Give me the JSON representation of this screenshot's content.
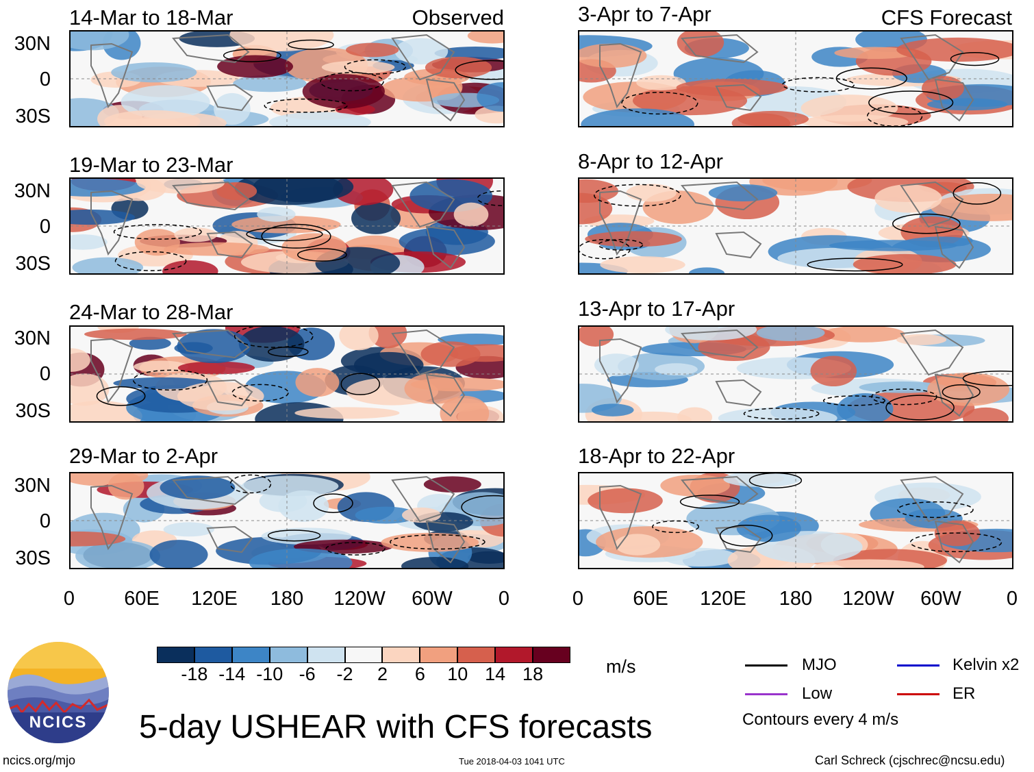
{
  "left_column_tag": "Observed",
  "right_column_tag": "CFS Forecast",
  "observed_panels": [
    {
      "title": "14-Mar to 18-Mar"
    },
    {
      "title": "19-Mar to 23-Mar"
    },
    {
      "title": "24-Mar to 28-Mar"
    },
    {
      "title": "29-Mar to 2-Apr"
    }
  ],
  "forecast_panels": [
    {
      "title": "3-Apr to 7-Apr"
    },
    {
      "title": "8-Apr to 12-Apr"
    },
    {
      "title": "13-Apr to 17-Apr"
    },
    {
      "title": "18-Apr to 22-Apr"
    }
  ],
  "lat_labels": [
    "30N",
    "0",
    "30S"
  ],
  "lon_labels": [
    "0",
    "60E",
    "120E",
    "180",
    "120W",
    "60W",
    "0"
  ],
  "colorbar": {
    "colors": [
      "#0a2f5c",
      "#1e5aa0",
      "#3d85c6",
      "#8ebbdd",
      "#cfe3f0",
      "#f7f7f7",
      "#fbd5c0",
      "#f1a07f",
      "#d6604d",
      "#b2182b",
      "#67001f"
    ],
    "ticks": [
      "-18",
      "-14",
      "-10",
      "-6",
      "-2",
      "2",
      "6",
      "10",
      "14",
      "18"
    ],
    "units": "m/s"
  },
  "legend": {
    "items": [
      {
        "label": "MJO",
        "color": "#000000"
      },
      {
        "label": "Kelvin x2",
        "color": "#0000cc"
      },
      {
        "label": "Low",
        "color": "#9933cc"
      },
      {
        "label": "ER",
        "color": "#cc0000"
      }
    ],
    "note": "Contours every 4 m/s"
  },
  "logo_text": "NCICS",
  "main_title": "5-day USHEAR with CFS forecasts",
  "website": "ncics.org/mjo",
  "timestamp": "Tue 2018-04-03 1041 UTC",
  "credit": "Carl Schreck (cjschrec@ncsu.edu)"
}
